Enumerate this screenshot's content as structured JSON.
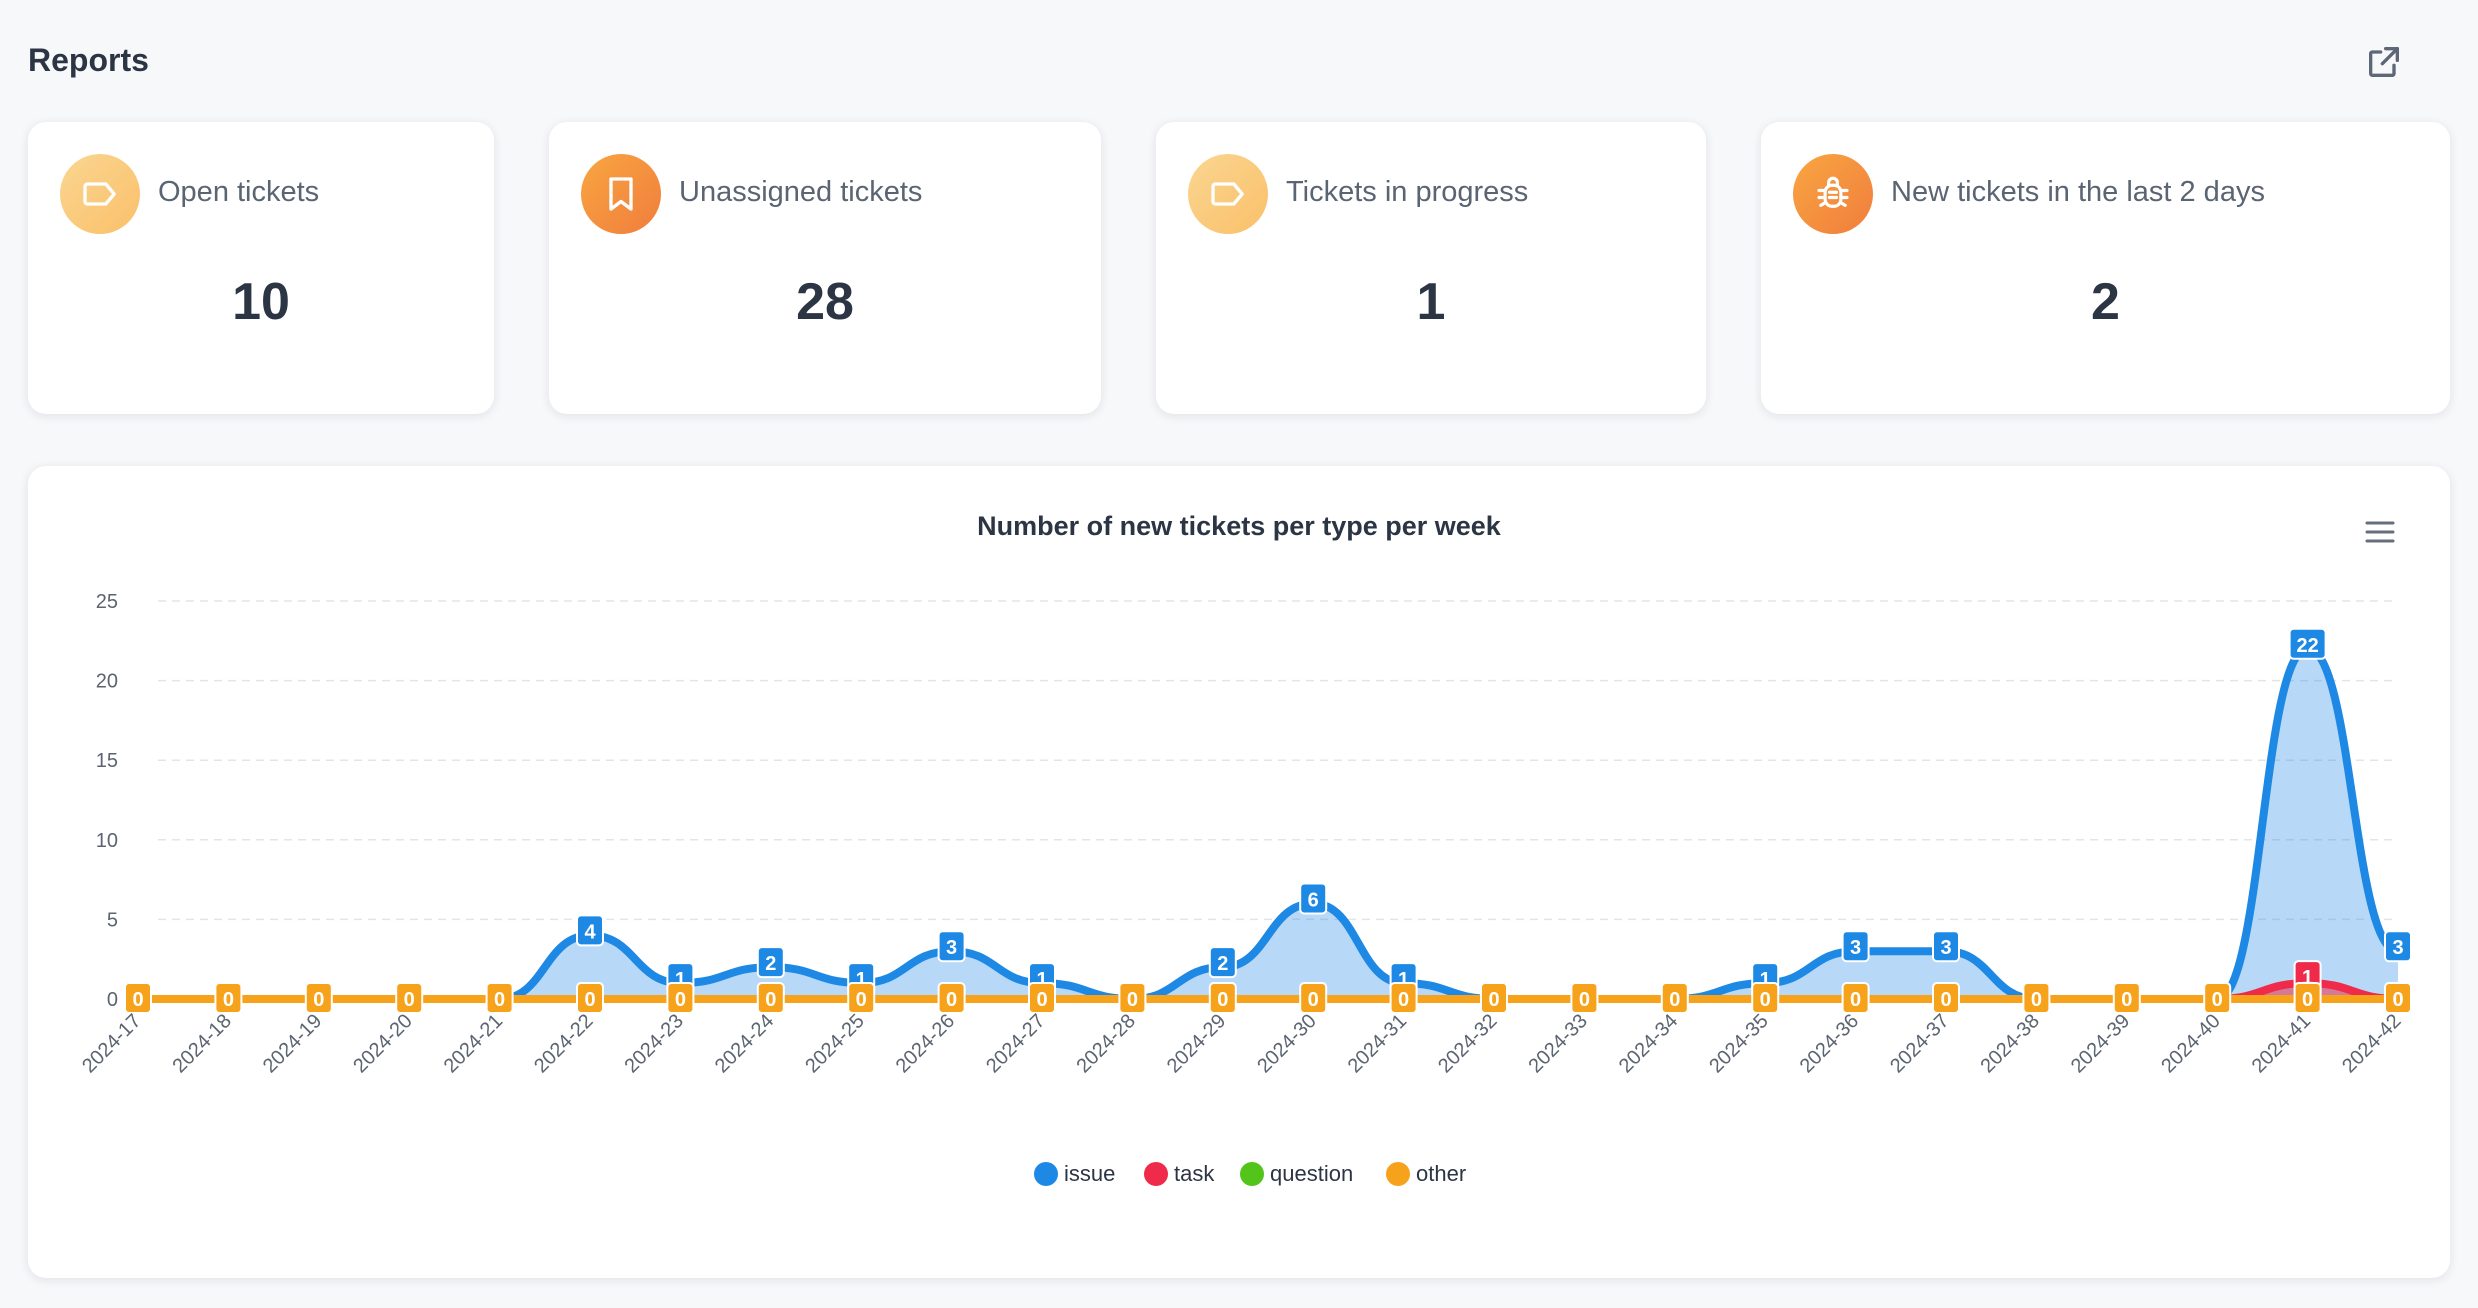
{
  "page": {
    "title": "Reports"
  },
  "export": {
    "icon": "external-link-icon"
  },
  "cards": [
    {
      "label": "Open tickets",
      "value": "10",
      "icon": "tag-icon",
      "icon_style": "light"
    },
    {
      "label": "Unassigned tickets",
      "value": "28",
      "icon": "bookmark-icon",
      "icon_style": "dark"
    },
    {
      "label": "Tickets in progress",
      "value": "1",
      "icon": "tag-icon",
      "icon_style": "light"
    },
    {
      "label": "New tickets in the last 2 days",
      "value": "2",
      "icon": "bug-icon",
      "icon_style": "dark"
    }
  ],
  "chart_menu": {
    "icon": "hamburger-menu-icon"
  },
  "chart_data": {
    "type": "area",
    "title": "Number of new tickets per type per week",
    "xlabel": "",
    "ylabel": "",
    "ylim": [
      0,
      25
    ],
    "yticks": [
      0,
      5,
      10,
      15,
      20,
      25
    ],
    "grid": true,
    "legend_position": "bottom-center",
    "categories": [
      "2024-17",
      "2024-18",
      "2024-19",
      "2024-20",
      "2024-21",
      "2024-22",
      "2024-23",
      "2024-24",
      "2024-25",
      "2024-26",
      "2024-27",
      "2024-28",
      "2024-29",
      "2024-30",
      "2024-31",
      "2024-32",
      "2024-33",
      "2024-34",
      "2024-35",
      "2024-36",
      "2024-37",
      "2024-38",
      "2024-39",
      "2024-40",
      "2024-41",
      "2024-42"
    ],
    "series": [
      {
        "name": "issue",
        "color": "#1e88e5",
        "values": [
          0,
          0,
          0,
          0,
          0,
          4,
          1,
          2,
          1,
          3,
          1,
          0,
          2,
          6,
          1,
          0,
          0,
          0,
          1,
          3,
          3,
          0,
          0,
          0,
          22,
          3
        ]
      },
      {
        "name": "task",
        "color": "#ef2a4a",
        "values": [
          0,
          0,
          0,
          0,
          0,
          0,
          0,
          0,
          0,
          0,
          0,
          0,
          0,
          0,
          0,
          0,
          0,
          0,
          0,
          0,
          0,
          0,
          0,
          0,
          1,
          0
        ]
      },
      {
        "name": "question",
        "color": "#52c41a",
        "values": [
          0,
          0,
          0,
          0,
          0,
          0,
          0,
          0,
          0,
          0,
          0,
          0,
          0,
          0,
          0,
          0,
          0,
          0,
          0,
          0,
          0,
          0,
          0,
          0,
          0,
          0
        ]
      },
      {
        "name": "other",
        "color": "#f7a21b",
        "values": [
          0,
          0,
          0,
          0,
          0,
          0,
          0,
          0,
          0,
          0,
          0,
          0,
          0,
          0,
          0,
          0,
          0,
          0,
          0,
          0,
          0,
          0,
          0,
          0,
          0,
          0
        ]
      }
    ]
  }
}
